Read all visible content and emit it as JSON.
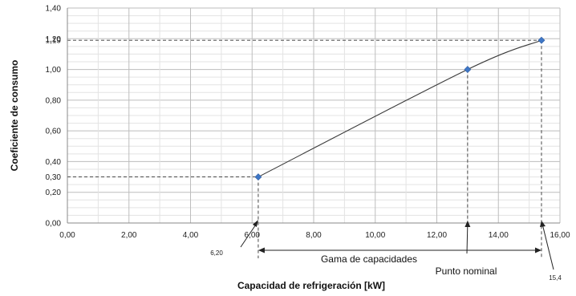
{
  "chart_data": {
    "type": "line",
    "xlabel": "Capacidad de refrigeración [kW]",
    "ylabel": "Coeficiente de consumo",
    "xlim": [
      0,
      16
    ],
    "ylim": [
      0,
      1.4
    ],
    "x_ticks": [
      "0,00",
      "2,00",
      "4,00",
      "6,00",
      "8,00",
      "10,00",
      "12,00",
      "14,00",
      "16,00"
    ],
    "y_ticks": [
      "0,00",
      "0,20",
      "0,30",
      "0,40",
      "0,60",
      "0,80",
      "1,00",
      "1,19",
      "1,20",
      "1,40"
    ],
    "grid": true,
    "series": [
      {
        "x": [
          6.2,
          13.0,
          15.4
        ],
        "y": [
          0.3,
          1.0,
          1.19
        ],
        "color": "#3f77c6"
      }
    ],
    "annotations": {
      "x_min_label": "6,20",
      "x_max_label": "15,4",
      "range_label": "Gama de capacidades",
      "nominal_label": "Punto nominal"
    }
  }
}
